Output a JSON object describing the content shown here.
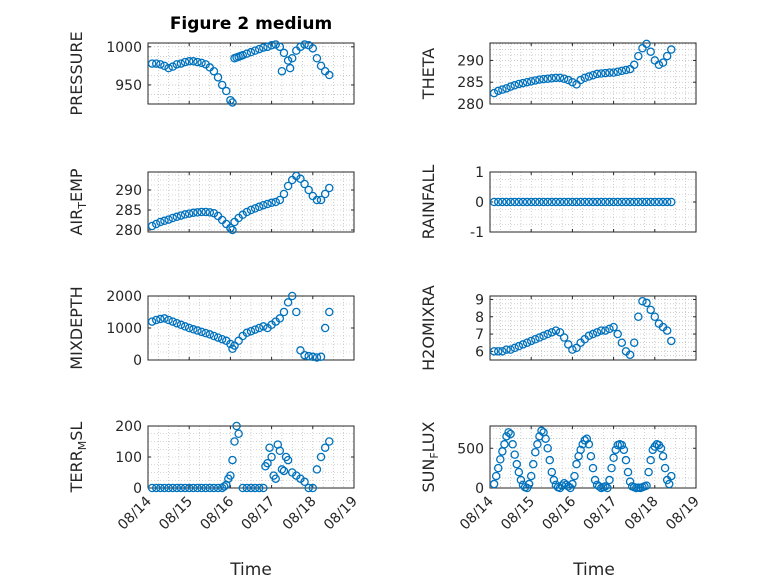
{
  "figure": {
    "title": "Figure 2 medium",
    "xlabel": "Time"
  },
  "colors": {
    "marker": "#0072BD",
    "axis": "#262626",
    "grid": "#b0b0b0"
  },
  "chart_data": [
    {
      "type": "scatter",
      "ylabel": "PRESSURE",
      "sub": "",
      "ylim": [
        925,
        1005
      ],
      "yticks": [
        950,
        1000
      ],
      "x_ticklabels_shown": false,
      "x": [
        14.1,
        14.2,
        14.3,
        14.4,
        14.5,
        14.6,
        14.7,
        14.8,
        14.9,
        15.0,
        15.1,
        15.2,
        15.3,
        15.4,
        15.5,
        15.6,
        15.7,
        15.8,
        15.9,
        16.0,
        16.05,
        16.1,
        16.15,
        16.2,
        16.25,
        16.3,
        16.4,
        16.5,
        16.6,
        16.7,
        16.8,
        16.9,
        17.0,
        17.1,
        17.2,
        17.3,
        17.4,
        17.5,
        17.6,
        17.7,
        17.8,
        17.9,
        18.0,
        18.1,
        18.2,
        18.3,
        18.4,
        17.25,
        17.45
      ],
      "y": [
        978,
        978,
        977,
        975,
        972,
        974,
        977,
        978,
        980,
        981,
        981,
        980,
        979,
        977,
        973,
        968,
        960,
        950,
        942,
        930,
        927,
        985,
        986,
        987,
        988,
        989,
        991,
        993,
        995,
        997,
        999,
        1000,
        1002,
        1003,
        1000,
        992,
        982,
        985,
        995,
        1000,
        1003,
        1002,
        998,
        985,
        975,
        968,
        963,
        968,
        972
      ]
    },
    {
      "type": "scatter",
      "ylabel": "THETA",
      "sub": "",
      "ylim": [
        280,
        294
      ],
      "yticks": [
        280,
        285,
        290
      ],
      "x_ticklabels_shown": false,
      "x": [
        14.1,
        14.2,
        14.3,
        14.4,
        14.5,
        14.6,
        14.7,
        14.8,
        14.9,
        15.0,
        15.1,
        15.2,
        15.3,
        15.4,
        15.5,
        15.6,
        15.7,
        15.8,
        15.9,
        16.0,
        16.1,
        16.2,
        16.3,
        16.4,
        16.5,
        16.6,
        16.7,
        16.8,
        16.9,
        17.0,
        17.1,
        17.2,
        17.3,
        17.4,
        17.5,
        17.6,
        17.7,
        17.8,
        17.9,
        18.0,
        18.1,
        18.2,
        18.3,
        18.4
      ],
      "y": [
        282.5,
        283,
        283.3,
        283.6,
        284,
        284.3,
        284.6,
        284.8,
        285,
        285.2,
        285.4,
        285.6,
        285.7,
        285.8,
        285.9,
        286,
        286,
        285.8,
        285.5,
        285,
        284.5,
        285.5,
        286,
        286.3,
        286.6,
        286.9,
        287,
        287.1,
        287.2,
        287.2,
        287.4,
        287.6,
        287.8,
        288,
        289,
        291,
        292.8,
        293.8,
        292,
        290,
        289,
        289.5,
        291,
        292.5
      ]
    },
    {
      "type": "scatter",
      "ylabel": "AIR",
      "sub": "T",
      "ylabel_rest": "EMP",
      "ylim": [
        279.5,
        294.5
      ],
      "yticks": [
        280,
        285,
        290
      ],
      "x_ticklabels_shown": false,
      "x": [
        14.1,
        14.2,
        14.3,
        14.4,
        14.5,
        14.6,
        14.7,
        14.8,
        14.9,
        15.0,
        15.1,
        15.2,
        15.3,
        15.4,
        15.5,
        15.6,
        15.7,
        15.8,
        15.9,
        16.0,
        16.05,
        16.1,
        16.2,
        16.3,
        16.4,
        16.5,
        16.6,
        16.7,
        16.8,
        16.9,
        17.0,
        17.1,
        17.2,
        17.3,
        17.4,
        17.5,
        17.6,
        17.7,
        17.8,
        17.9,
        18.0,
        18.1,
        18.2,
        18.3,
        18.4
      ],
      "y": [
        281,
        281.5,
        282,
        282.3,
        282.6,
        283,
        283.3,
        283.6,
        283.9,
        284.1,
        284.3,
        284.4,
        284.5,
        284.5,
        284.4,
        284.2,
        283.5,
        282.5,
        281.5,
        280.5,
        280,
        282,
        283,
        283.8,
        284.5,
        285,
        285.4,
        285.8,
        286.2,
        286.5,
        286.8,
        287,
        287.5,
        289,
        291,
        292.5,
        293.5,
        292.8,
        291.5,
        290,
        288.5,
        287.5,
        287.5,
        289,
        290.5
      ]
    },
    {
      "type": "scatter",
      "ylabel": "RAINFALL",
      "sub": "",
      "ylim": [
        -1,
        1
      ],
      "yticks": [
        -1,
        0,
        1
      ],
      "x_ticklabels_shown": false,
      "x": [
        14.1,
        14.2,
        14.3,
        14.4,
        14.5,
        14.6,
        14.7,
        14.8,
        14.9,
        15.0,
        15.1,
        15.2,
        15.3,
        15.4,
        15.5,
        15.6,
        15.7,
        15.8,
        15.9,
        16.0,
        16.1,
        16.2,
        16.3,
        16.4,
        16.5,
        16.6,
        16.7,
        16.8,
        16.9,
        17.0,
        17.1,
        17.2,
        17.3,
        17.4,
        17.5,
        17.6,
        17.7,
        17.8,
        17.9,
        18.0,
        18.1,
        18.2,
        18.3,
        18.4
      ],
      "y": [
        0,
        0,
        0,
        0,
        0,
        0,
        0,
        0,
        0,
        0,
        0,
        0,
        0,
        0,
        0,
        0,
        0,
        0,
        0,
        0,
        0,
        0,
        0,
        0,
        0,
        0,
        0,
        0,
        0,
        0,
        0,
        0,
        0,
        0,
        0,
        0,
        0,
        0,
        0,
        0,
        0,
        0,
        0,
        0
      ]
    },
    {
      "type": "scatter",
      "ylabel": "MIXDEPTH",
      "sub": "",
      "ylim": [
        0,
        2000
      ],
      "yticks": [
        0,
        1000,
        2000
      ],
      "x_ticklabels_shown": false,
      "x": [
        14.1,
        14.2,
        14.3,
        14.4,
        14.5,
        14.6,
        14.7,
        14.8,
        14.9,
        15.0,
        15.1,
        15.2,
        15.3,
        15.4,
        15.5,
        15.6,
        15.7,
        15.8,
        15.9,
        16.0,
        16.05,
        16.1,
        16.2,
        16.3,
        16.4,
        16.5,
        16.6,
        16.7,
        16.8,
        16.9,
        17.0,
        17.1,
        17.2,
        17.3,
        17.4,
        17.5,
        17.6,
        17.7,
        17.8,
        17.9,
        18.0,
        18.1,
        18.2,
        18.3,
        18.4
      ],
      "y": [
        1200,
        1250,
        1280,
        1300,
        1250,
        1200,
        1150,
        1100,
        1050,
        1000,
        960,
        920,
        880,
        840,
        800,
        750,
        700,
        650,
        600,
        500,
        350,
        450,
        600,
        750,
        850,
        900,
        950,
        1000,
        1050,
        1000,
        1100,
        1200,
        1300,
        1500,
        1800,
        2000,
        1500,
        300,
        150,
        120,
        100,
        80,
        100,
        1000,
        1500
      ]
    },
    {
      "type": "scatter",
      "ylabel": "H2OMIXRA",
      "sub": "",
      "ylim": [
        5.5,
        9.2
      ],
      "yticks": [
        6,
        7,
        8,
        9
      ],
      "x_ticklabels_shown": false,
      "x": [
        14.1,
        14.2,
        14.3,
        14.4,
        14.5,
        14.6,
        14.7,
        14.8,
        14.9,
        15.0,
        15.1,
        15.2,
        15.3,
        15.4,
        15.5,
        15.6,
        15.7,
        15.8,
        15.9,
        16.0,
        16.1,
        16.2,
        16.3,
        16.4,
        16.5,
        16.6,
        16.7,
        16.8,
        16.9,
        17.0,
        17.1,
        17.2,
        17.3,
        17.4,
        17.5,
        17.6,
        17.7,
        17.8,
        17.9,
        18.0,
        18.1,
        18.2,
        18.3,
        18.4
      ],
      "y": [
        6,
        6,
        6,
        6.1,
        6.1,
        6.2,
        6.3,
        6.4,
        6.5,
        6.6,
        6.7,
        6.8,
        6.9,
        7,
        7.1,
        7.2,
        7.1,
        6.8,
        6.4,
        6.1,
        6.2,
        6.5,
        6.7,
        6.9,
        7,
        7.1,
        7.2,
        7.2,
        7.3,
        7.4,
        7,
        6.5,
        6,
        5.8,
        6.5,
        8,
        8.9,
        8.8,
        8.4,
        8,
        7.6,
        7.4,
        7.2,
        6.6
      ]
    },
    {
      "type": "scatter",
      "ylabel": "TERR",
      "sub": "M",
      "ylabel_rest": "SL",
      "ylim": [
        0,
        200
      ],
      "yticks": [
        0,
        100,
        200
      ],
      "x_ticklabels": [
        "08/14",
        "08/15",
        "08/16",
        "08/17",
        "08/18",
        "08/19"
      ],
      "x": [
        14.1,
        14.2,
        14.3,
        14.4,
        14.5,
        14.6,
        14.7,
        14.8,
        14.9,
        15.0,
        15.1,
        15.2,
        15.3,
        15.4,
        15.5,
        15.6,
        15.7,
        15.8,
        15.85,
        15.9,
        15.95,
        16.0,
        16.05,
        16.1,
        16.15,
        16.2,
        16.3,
        16.4,
        16.5,
        16.6,
        16.7,
        16.8,
        16.85,
        16.9,
        16.95,
        17.0,
        17.05,
        17.1,
        17.15,
        17.2,
        17.25,
        17.3,
        17.35,
        17.4,
        17.5,
        17.6,
        17.7,
        17.8,
        17.9,
        18.0,
        18.1,
        18.2,
        18.3,
        18.4
      ],
      "y": [
        0,
        0,
        0,
        0,
        0,
        0,
        0,
        0,
        0,
        0,
        0,
        0,
        0,
        0,
        0,
        0,
        0,
        0,
        5,
        10,
        30,
        40,
        90,
        150,
        200,
        175,
        0,
        0,
        0,
        0,
        0,
        0,
        70,
        80,
        130,
        100,
        40,
        30,
        140,
        120,
        60,
        55,
        100,
        90,
        50,
        40,
        30,
        20,
        0,
        0,
        60,
        100,
        130,
        150
      ]
    },
    {
      "type": "scatter",
      "ylabel": "SUN",
      "sub": "F",
      "ylabel_rest": "LUX",
      "ylim": [
        0,
        780
      ],
      "yticks": [
        0,
        500
      ],
      "x_ticklabels": [
        "08/14",
        "08/15",
        "08/16",
        "08/17",
        "08/18",
        "08/19"
      ],
      "x": [
        14.1,
        14.15,
        14.2,
        14.25,
        14.3,
        14.35,
        14.4,
        14.45,
        14.5,
        14.55,
        14.6,
        14.65,
        14.7,
        14.75,
        14.8,
        14.85,
        14.9,
        14.95,
        15.0,
        15.05,
        15.1,
        15.15,
        15.2,
        15.25,
        15.3,
        15.35,
        15.4,
        15.45,
        15.5,
        15.55,
        15.6,
        15.65,
        15.7,
        15.75,
        15.8,
        15.85,
        15.9,
        15.95,
        16.0,
        16.05,
        16.1,
        16.15,
        16.2,
        16.25,
        16.3,
        16.35,
        16.4,
        16.45,
        16.5,
        16.55,
        16.6,
        16.65,
        16.7,
        16.75,
        16.8,
        16.85,
        16.9,
        16.95,
        17.0,
        17.05,
        17.1,
        17.15,
        17.2,
        17.25,
        17.3,
        17.35,
        17.4,
        17.45,
        17.5,
        17.55,
        17.6,
        17.65,
        17.7,
        17.75,
        17.8,
        17.85,
        17.9,
        17.95,
        18.0,
        18.05,
        18.1,
        18.15,
        18.2,
        18.25,
        18.3,
        18.35,
        18.4
      ],
      "y": [
        50,
        150,
        250,
        360,
        460,
        550,
        650,
        700,
        680,
        550,
        420,
        300,
        200,
        100,
        40,
        10,
        0,
        50,
        150,
        300,
        450,
        550,
        650,
        720,
        700,
        620,
        500,
        350,
        200,
        100,
        40,
        10,
        0,
        30,
        60,
        40,
        20,
        0,
        50,
        150,
        300,
        400,
        480,
        550,
        600,
        620,
        550,
        400,
        250,
        100,
        40,
        20,
        0,
        10,
        20,
        0,
        100,
        250,
        380,
        480,
        540,
        550,
        540,
        480,
        350,
        200,
        80,
        20,
        10,
        0,
        5,
        0,
        10,
        20,
        30,
        200,
        350,
        480,
        520,
        550,
        540,
        500,
        400,
        250,
        100,
        50,
        150
      ]
    }
  ]
}
